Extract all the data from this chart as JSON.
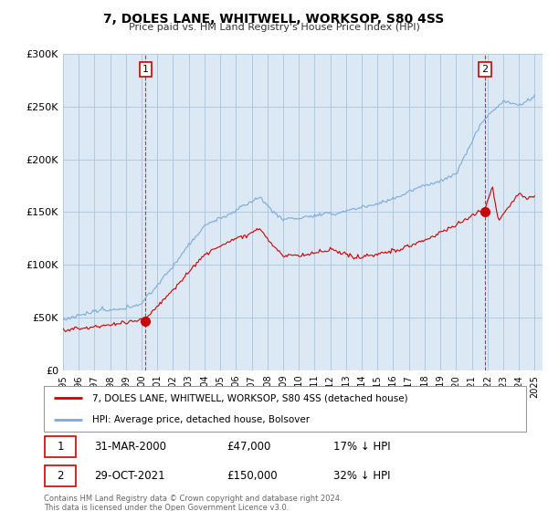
{
  "title": "7, DOLES LANE, WHITWELL, WORKSOP, S80 4SS",
  "subtitle": "Price paid vs. HM Land Registry's House Price Index (HPI)",
  "legend_line1": "7, DOLES LANE, WHITWELL, WORKSOP, S80 4SS (detached house)",
  "legend_line2": "HPI: Average price, detached house, Bolsover",
  "price_color": "#cc0000",
  "hpi_color": "#7aabdb",
  "annotation1_date": "31-MAR-2000",
  "annotation1_price": "£47,000",
  "annotation1_pct": "17% ↓ HPI",
  "annotation2_date": "29-OCT-2021",
  "annotation2_price": "£150,000",
  "annotation2_pct": "32% ↓ HPI",
  "footer": "Contains HM Land Registry data © Crown copyright and database right 2024.\nThis data is licensed under the Open Government Licence v3.0.",
  "ylim": [
    0,
    300000
  ],
  "yticks": [
    0,
    50000,
    100000,
    150000,
    200000,
    250000,
    300000
  ],
  "ytick_labels": [
    "£0",
    "£50K",
    "£100K",
    "£150K",
    "£200K",
    "£250K",
    "£300K"
  ],
  "sale1_year": 2000.25,
  "sale1_value": 47000,
  "sale2_year": 2021.83,
  "sale2_value": 150000,
  "xmin": 1995,
  "xmax": 2025.5,
  "background_color": "#dce9f5",
  "grid_color": "#b0c8e0",
  "plot_bg_color": "#dce9f5"
}
